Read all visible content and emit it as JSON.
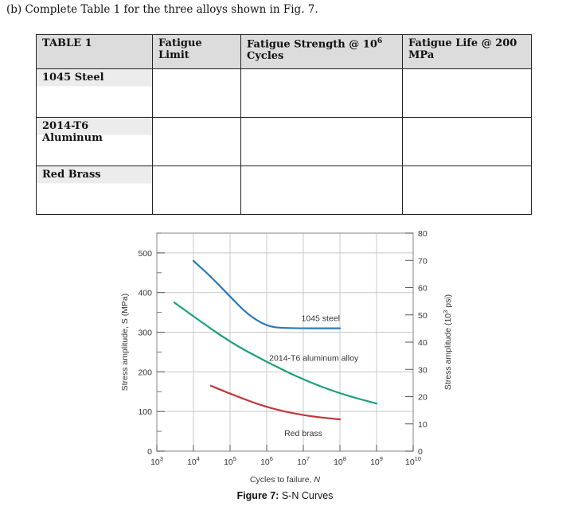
{
  "question": "(b) Complete Table 1 for the three alloys shown in Fig. 7.",
  "table": {
    "title": "TABLE 1",
    "headers": [
      "Fatigue Limit",
      "Fatigue Strength @ 10",
      "Cycles",
      "Fatigue Life @ 200",
      "MPa"
    ],
    "header_exp": "6",
    "rows": [
      "1045 Steel",
      "2014-T6 Aluminum",
      "Red Brass"
    ]
  },
  "caption": {
    "label": "Figure 7:",
    "text": "S-N Curves"
  },
  "colors": {
    "steel": "#2a79b8",
    "aluminum": "#1aa07a",
    "brass": "#c0393b",
    "grid": "#c8c8c8",
    "frame": "#9a9a9a"
  },
  "chart_data": {
    "type": "line",
    "xscale": "log",
    "xlabel": "Cycles to failure, N",
    "ylabel": "Stress amplitude, S (MPa)",
    "ylabel_right": "Stress amplitude (10",
    "ylabel_right_exp": "3",
    "ylabel_right_end": " psi)",
    "xlim": [
      1000,
      10000000000
    ],
    "ylim": [
      0,
      550
    ],
    "ylim_right": [
      0,
      80
    ],
    "x_ticks": [
      {
        "base": "10",
        "exp": "3"
      },
      {
        "base": "10",
        "exp": "4"
      },
      {
        "base": "10",
        "exp": "5"
      },
      {
        "base": "10",
        "exp": "6"
      },
      {
        "base": "10",
        "exp": "7"
      },
      {
        "base": "10",
        "exp": "8"
      },
      {
        "base": "10",
        "exp": "9"
      },
      {
        "base": "10",
        "exp": "10"
      }
    ],
    "y_ticks": [
      "0",
      "100",
      "200",
      "300",
      "400",
      "500"
    ],
    "y_ticks_right": [
      "0",
      "10",
      "20",
      "30",
      "40",
      "50",
      "60",
      "70",
      "80"
    ],
    "series": [
      {
        "name": "1045 steel",
        "color": "#2a79b8",
        "x": [
          10000,
          30000,
          100000,
          300000,
          1000000,
          3000000,
          100000000
        ],
        "y": [
          480,
          440,
          390,
          345,
          315,
          310,
          310
        ]
      },
      {
        "name": "2014-T6 aluminum alloy",
        "color": "#1aa07a",
        "x": [
          3000,
          10000,
          100000,
          1000000,
          10000000,
          100000000,
          1000000000
        ],
        "y": [
          375,
          340,
          275,
          225,
          180,
          145,
          120
        ]
      },
      {
        "name": "Red brass",
        "color": "#c0393b",
        "x": [
          30000,
          100000,
          1000000,
          10000000,
          100000000
        ],
        "y": [
          165,
          145,
          110,
          90,
          80
        ]
      }
    ]
  }
}
